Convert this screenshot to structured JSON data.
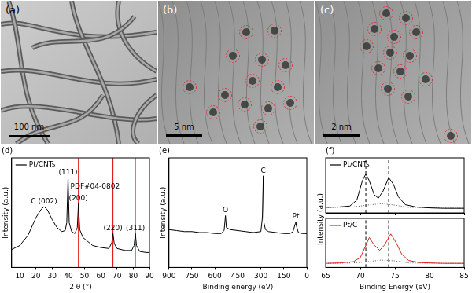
{
  "images": [
    {
      "label": "(a)",
      "scale_bar": "100 nm"
    },
    {
      "label": "(b)",
      "scale_bar": "5 nm"
    },
    {
      "label": "(c)",
      "scale_bar": "2 nm"
    }
  ],
  "chart_data": [
    {
      "type": "line",
      "title": "(d)",
      "x_label": "2 θ (°)",
      "y_label": "Intensity (a.u.)",
      "xlim": [
        5,
        90
      ],
      "xticks": [
        10,
        20,
        30,
        40,
        50,
        60,
        70,
        80,
        90
      ],
      "ylim": [
        0,
        110
      ],
      "tick_labels": "x",
      "grid": false,
      "legend": "upper left",
      "x": [
        5,
        10,
        15,
        20,
        23,
        25,
        27,
        30,
        33,
        36,
        38,
        39,
        39.8,
        40.5,
        42,
        44,
        45.5,
        46.2,
        47,
        49,
        52,
        55,
        60,
        65,
        66.8,
        67.5,
        68.3,
        70,
        75,
        79,
        80.5,
        81.3,
        82,
        84,
        88,
        90
      ],
      "series": [
        {
          "name": "Pt/CNTs",
          "color": "#000000",
          "values": [
            18,
            22,
            32,
            50,
            58,
            61,
            58,
            48,
            40,
            36,
            37,
            45,
            90,
            45,
            36,
            34,
            40,
            64,
            38,
            30,
            26,
            22,
            20,
            19,
            25,
            34,
            24,
            19,
            17,
            17,
            22,
            34,
            22,
            16,
            15,
            15
          ]
        }
      ],
      "reference_lines": {
        "name": "PDF#04-0802",
        "color": "#e00000",
        "x": [
          39.8,
          46.2,
          67.5,
          81.3
        ]
      },
      "annotations": [
        {
          "text": "C (002)",
          "x": 25
        },
        {
          "text": "(111)",
          "x": 39.8
        },
        {
          "text": "(200)",
          "x": 46.2
        },
        {
          "text": "(220)",
          "x": 67.5
        },
        {
          "text": "(311)",
          "x": 81.3
        }
      ]
    },
    {
      "type": "line",
      "title": "(e)",
      "x_label": "Binding energy (eV)",
      "y_label": "Intensity (a.u.)",
      "xlim": [
        900,
        0
      ],
      "xticks": [
        900,
        750,
        600,
        450,
        300,
        150,
        0
      ],
      "ylim": [
        0,
        110
      ],
      "tick_labels": "x",
      "grid": false,
      "color": "#000000",
      "x": [
        900,
        850,
        800,
        750,
        700,
        650,
        600,
        560,
        540,
        531,
        525,
        500,
        450,
        400,
        350,
        300,
        290,
        284,
        280,
        270,
        250,
        200,
        150,
        110,
        90,
        75,
        72,
        68,
        55,
        30,
        0
      ],
      "values": [
        38,
        37,
        36,
        36,
        35,
        35,
        34,
        34,
        37,
        52,
        40,
        38,
        37,
        36,
        35,
        36,
        50,
        92,
        45,
        38,
        36,
        35,
        34,
        34,
        36,
        44,
        46,
        42,
        35,
        34,
        34
      ],
      "annotations": [
        {
          "text": "O",
          "x": 531
        },
        {
          "text": "C",
          "x": 284
        },
        {
          "text": "Pt",
          "x": 72
        }
      ]
    },
    {
      "type": "line",
      "title": "(f)",
      "y_label": "Intensity (a.u.)",
      "xlim": [
        65,
        85
      ],
      "xticks": [
        65,
        70,
        75,
        80,
        85
      ],
      "ylim": [
        0,
        120
      ],
      "tick_labels": false,
      "grid": false,
      "legend": "upper left",
      "x": [
        65,
        67,
        68.5,
        69.5,
        70.3,
        70.8,
        71.3,
        72,
        72.6,
        73.3,
        74.1,
        74.8,
        75.5,
        76.5,
        78,
        80,
        82,
        85
      ],
      "series": [
        {
          "name": "Pt/CNTs",
          "color": "#000000",
          "values": [
            12,
            13,
            15,
            28,
            70,
            85,
            70,
            40,
            32,
            48,
            77,
            62,
            35,
            18,
            13,
            11,
            10,
            10
          ]
        }
      ],
      "background": {
        "color": "#555555",
        "line_style": "dotted",
        "x": [
          65,
          69,
          71,
          73,
          75,
          77,
          80,
          85
        ],
        "values": [
          12,
          13,
          17,
          20,
          17,
          12,
          11,
          10
        ]
      },
      "reference_lines": {
        "color": "#000000",
        "line_style": "dashed",
        "x": [
          70.8,
          74.1
        ]
      }
    },
    {
      "type": "line",
      "x_label": "Binding Energy (eV)",
      "xlim": [
        65,
        85
      ],
      "xticks": [
        65,
        70,
        75,
        80,
        85
      ],
      "ylim": [
        0,
        120
      ],
      "tick_labels": "x",
      "grid": false,
      "legend": "upper left",
      "x": [
        65,
        67,
        69,
        70,
        70.7,
        71.3,
        72,
        72.8,
        73.5,
        74.4,
        75.2,
        76,
        77,
        78.5,
        80,
        82,
        85
      ],
      "series": [
        {
          "name": "Pt/C",
          "color": "#e02020",
          "values": [
            10,
            11,
            14,
            24,
            50,
            73,
            55,
            42,
            55,
            82,
            60,
            32,
            17,
            12,
            11,
            10,
            10
          ]
        }
      ],
      "background": {
        "color": "#555555",
        "line_style": "dotted",
        "x": [
          65,
          69,
          71,
          73,
          75,
          77,
          85
        ],
        "values": [
          10,
          11,
          14,
          18,
          16,
          11,
          10
        ]
      },
      "reference_lines": {
        "color": "#000000",
        "line_style": "dashed",
        "x": [
          70.8,
          74.1
        ]
      }
    }
  ]
}
